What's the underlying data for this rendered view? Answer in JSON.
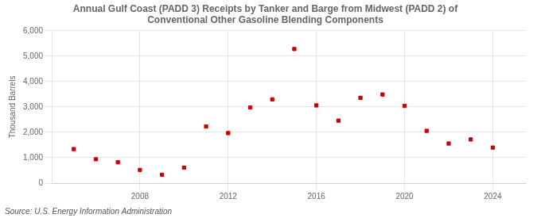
{
  "chart_data": {
    "type": "scatter",
    "title": "Annual Gulf Coast (PADD 3) Receipts by Tanker and Barge from Midwest (PADD 2) of\nConventional Other Gasoline Blending Components",
    "ylabel": "Thousand Barrels",
    "annotations": [
      "Source: U.S. Energy Information Administration"
    ],
    "x": [
      2005,
      2006,
      2007,
      2008,
      2009,
      2010,
      2011,
      2012,
      2013,
      2014,
      2015,
      2016,
      2017,
      2018,
      2019,
      2020,
      2021,
      2022,
      2023,
      2024
    ],
    "values": [
      1340,
      940,
      820,
      520,
      330,
      610,
      2230,
      1970,
      2980,
      3300,
      5280,
      3060,
      2460,
      3360,
      3490,
      3040,
      2060,
      1560,
      1720,
      1400
    ],
    "color": "#cc0000",
    "marker": "square",
    "xlim": [
      2004,
      2025.5
    ],
    "xticks": [
      2008,
      2012,
      2016,
      2020,
      2024
    ],
    "ylim": [
      0,
      6000
    ],
    "yticks": [
      0,
      {
        "value": 1000,
        "label": "1,000"
      },
      {
        "value": 2000,
        "label": "2,000"
      },
      {
        "value": 3000,
        "label": "3,000"
      },
      {
        "value": 4000,
        "label": "4,000"
      },
      {
        "value": 5000,
        "label": "5,000"
      },
      {
        "value": 6000,
        "label": "6,000"
      }
    ],
    "grid": true
  }
}
